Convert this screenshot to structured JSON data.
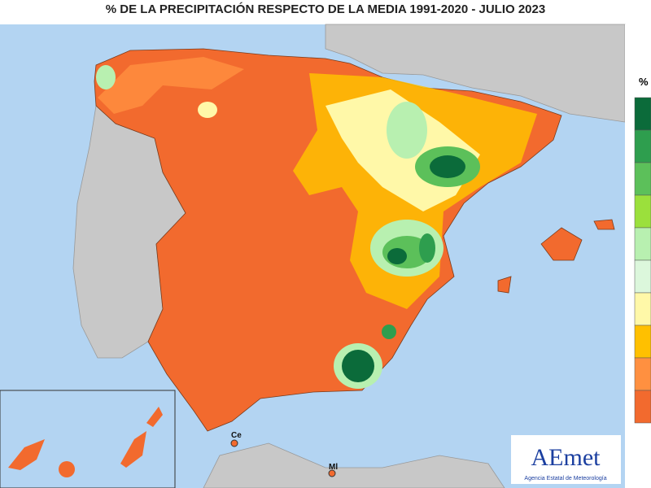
{
  "title": "% DE LA PRECIPITACIÓN RESPECTO DE LA MEDIA 1991-2020 - JULIO 2023",
  "legend": {
    "title": "%"
  },
  "labels": {
    "ceuta": "Ce",
    "melilla": "Ml"
  },
  "logo": {
    "name": "AEmet",
    "agency": "Agencia Estatal de Meteorología"
  }
}
